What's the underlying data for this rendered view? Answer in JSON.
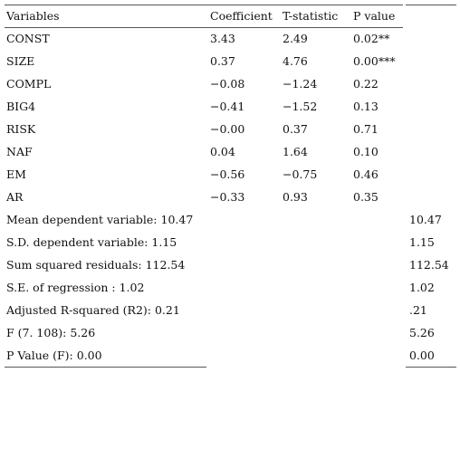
{
  "header": {
    "variables": "Variables",
    "coefficient": "Coefficient",
    "t_statistic": "T-statistic",
    "p_value": "P value"
  },
  "rows": [
    {
      "name": "CONST",
      "coef": "3.43",
      "t": "2.49",
      "p": "0.02**"
    },
    {
      "name": "SIZE",
      "coef": "0.37",
      "t": "4.76",
      "p": "0.00***"
    },
    {
      "name": "COMPL",
      "coef": "−0.08",
      "t": "−1.24",
      "p": "0.22"
    },
    {
      "name": "BIG4",
      "coef": "−0.41",
      "t": "−1.52",
      "p": "0.13"
    },
    {
      "name": "RISK",
      "coef": "−0.00",
      "t": "0.37",
      "p": "0.71"
    },
    {
      "name": "NAF",
      "coef": "0.04",
      "t": "1.64",
      "p": "0.10"
    },
    {
      "name": "EM",
      "coef": "−0.56",
      "t": "−0.75",
      "p": "0.46"
    },
    {
      "name": "AR",
      "coef": "−0.33",
      "t": "0.93",
      "p": "0.35"
    }
  ],
  "stats": [
    {
      "label": "Mean dependent variable: 10.47",
      "value": "10.47"
    },
    {
      "label": "S.D. dependent variable: 1.15",
      "value": "1.15"
    },
    {
      "label": "Sum squared residuals: 112.54",
      "value": "112.54"
    },
    {
      "label": "S.E. of regression : 1.02",
      "value": "1.02"
    },
    {
      "label": "Adjusted R-squared (R2): 0.21",
      "value": ".21"
    },
    {
      "label": "F (7. 108): 5.26",
      "value": "5.26"
    },
    {
      "label": "P Value (F): 0.00",
      "value": "0.00"
    }
  ]
}
